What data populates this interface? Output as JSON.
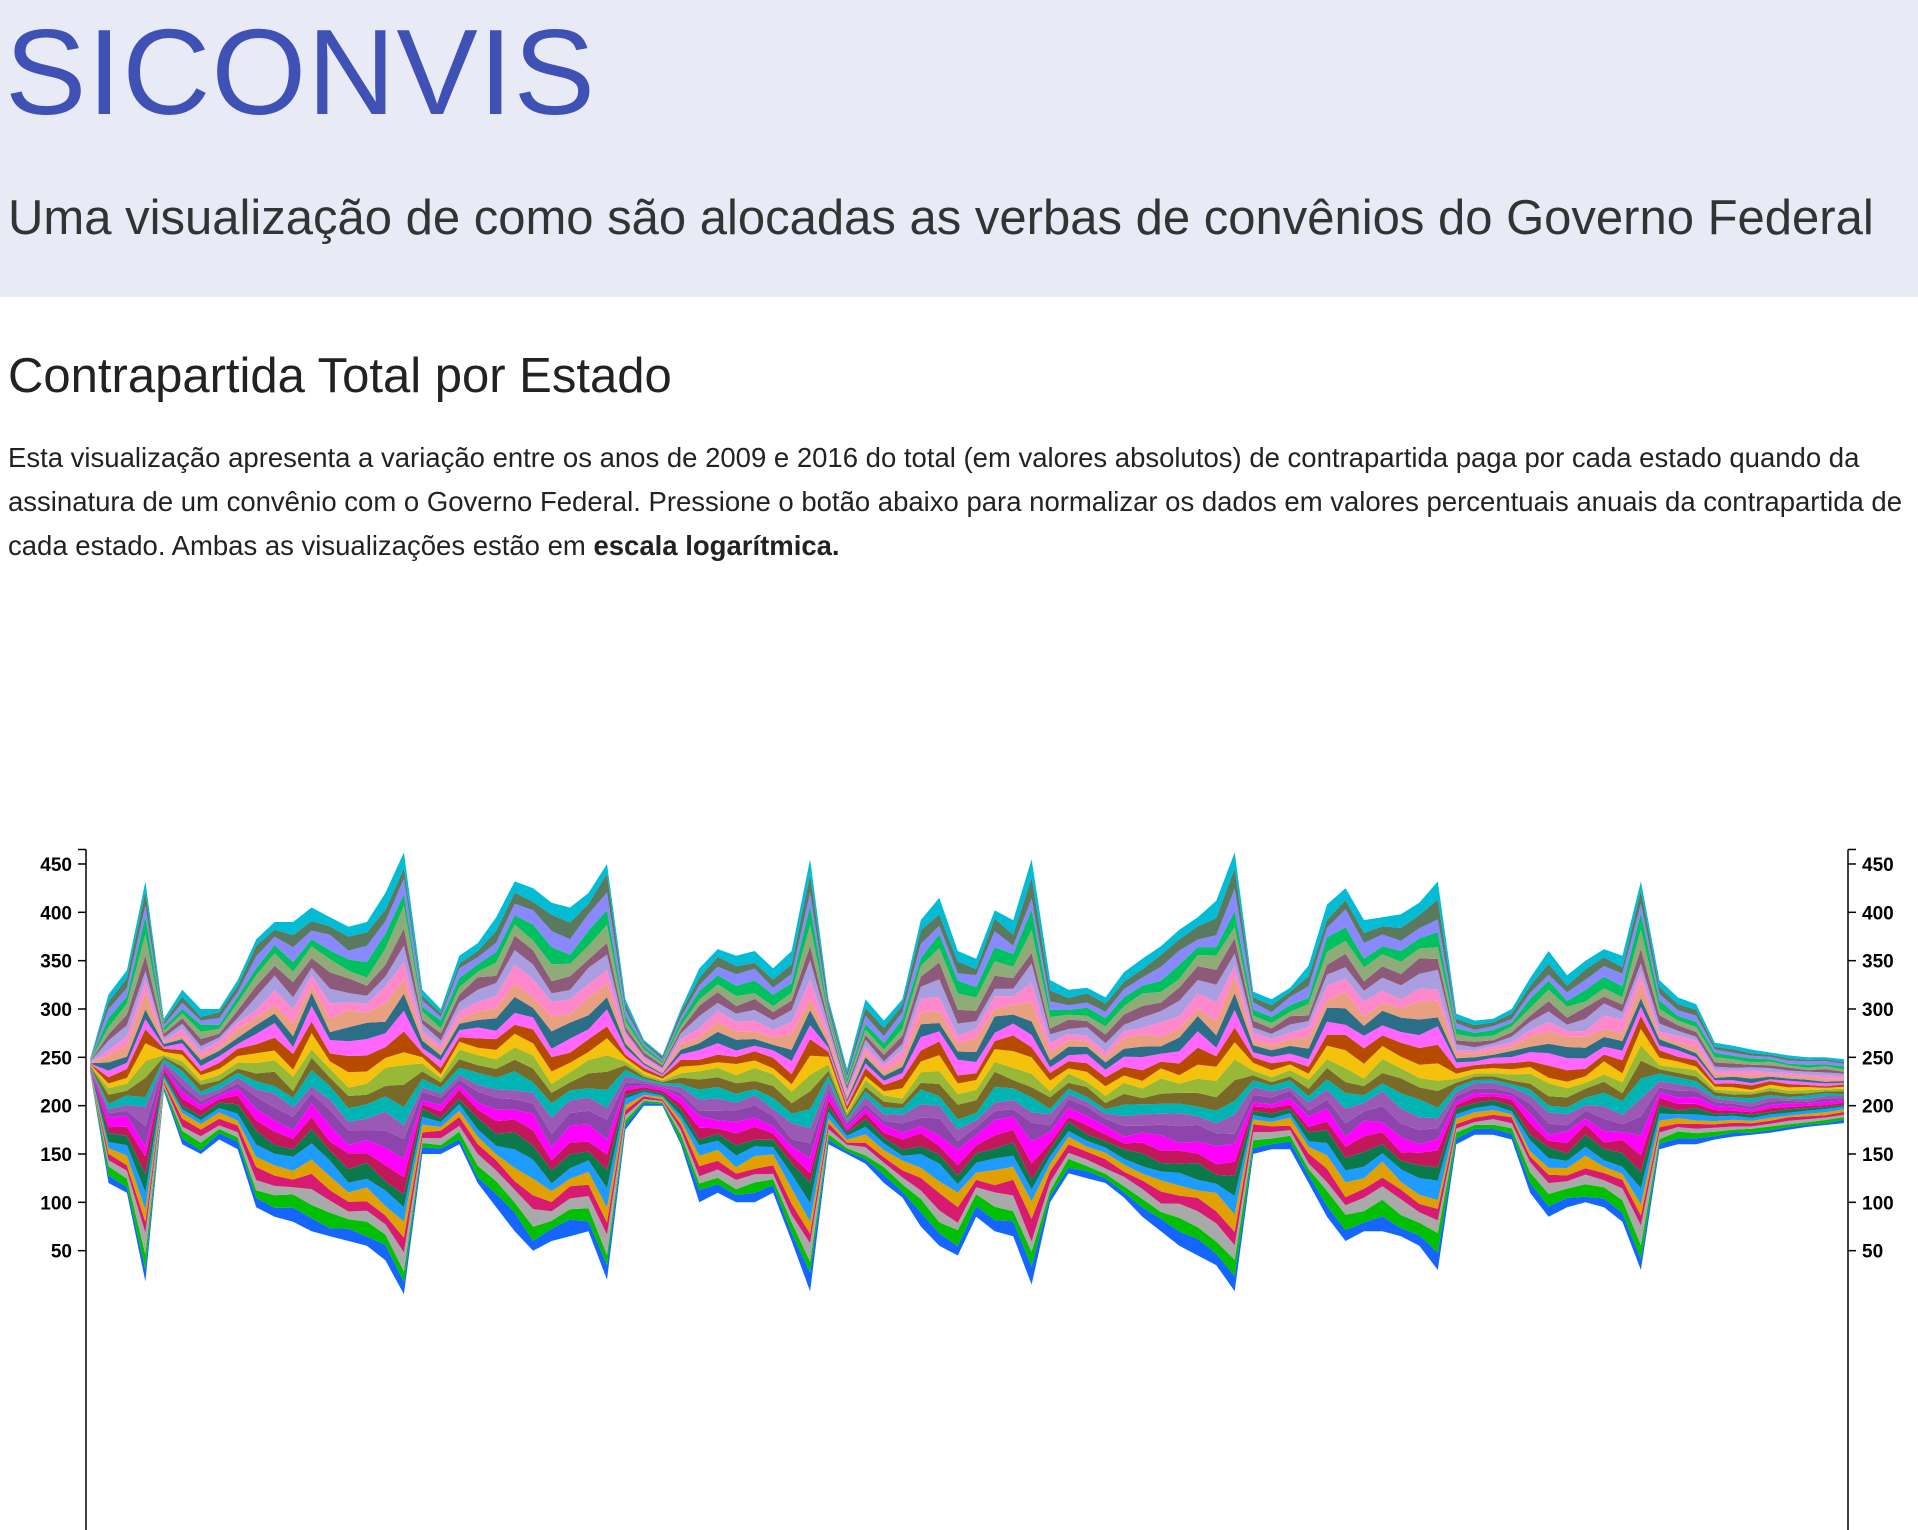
{
  "header": {
    "title": "SICONVIS",
    "subtitle": "Uma visualização de como são alocadas as verbas de convênios do Governo Federal"
  },
  "section": {
    "title": "Contrapartida Total por Estado",
    "description_text": "Esta visualização apresenta a variação entre os anos de 2009 e 2016 do total (em valores absolutos) de contrapartida paga por cada estado quando da assinatura de um convênio com o Governo Federal. Pressione o botão abaixo para normalizar os dados em valores percentuais anuais da contrapartida de cada estado. Ambas as visualizações estão em ",
    "description_bold": "escala logarítmica."
  },
  "chart_data": {
    "type": "area",
    "subtype": "streamgraph",
    "y_axis_left": {
      "ticks": [
        50,
        100,
        150,
        200,
        250,
        300,
        350,
        400,
        450
      ]
    },
    "y_axis_right": {
      "ticks": [
        50,
        100,
        150,
        200,
        250,
        300,
        350,
        400,
        450
      ]
    },
    "ylim": [
      0,
      465
    ],
    "x_points": 96,
    "baseline_note": "symmetric streams around center ~235",
    "top_envelope": [
      248,
      315,
      340,
      432,
      290,
      320,
      300,
      300,
      330,
      372,
      390,
      390,
      405,
      395,
      385,
      390,
      420,
      462,
      320,
      300,
      355,
      368,
      395,
      432,
      425,
      410,
      405,
      420,
      450,
      310,
      268,
      252,
      300,
      342,
      362,
      355,
      360,
      342,
      360,
      455,
      310,
      238,
      310,
      288,
      310,
      392,
      415,
      360,
      352,
      402,
      392,
      455,
      330,
      320,
      322,
      312,
      338,
      352,
      365,
      382,
      395,
      412,
      462,
      318,
      310,
      322,
      345,
      408,
      425,
      392,
      395,
      398,
      410,
      432,
      295,
      288,
      290,
      300,
      332,
      360,
      335,
      350,
      362,
      355,
      432,
      330,
      312,
      305,
      265,
      262,
      258,
      255,
      252,
      250,
      250,
      248
    ],
    "bottom_envelope": [
      235,
      120,
      110,
      18,
      215,
      160,
      150,
      165,
      155,
      95,
      85,
      80,
      70,
      65,
      60,
      55,
      40,
      5,
      150,
      150,
      160,
      120,
      95,
      70,
      50,
      60,
      65,
      70,
      20,
      175,
      200,
      200,
      160,
      100,
      110,
      100,
      100,
      110,
      60,
      8,
      160,
      150,
      140,
      120,
      105,
      75,
      55,
      45,
      85,
      70,
      65,
      15,
      100,
      130,
      125,
      120,
      105,
      85,
      70,
      55,
      45,
      35,
      8,
      150,
      155,
      155,
      120,
      85,
      60,
      70,
      70,
      65,
      55,
      30,
      160,
      170,
      170,
      165,
      110,
      85,
      95,
      100,
      95,
      80,
      30,
      155,
      160,
      160,
      165,
      168,
      170,
      172,
      175,
      178,
      180,
      182
    ],
    "layer_count": 27,
    "layer_colors": [
      "#1565ff",
      "#00c000",
      "#a9a9a9",
      "#d81b70",
      "#e0a000",
      "#1e9bff",
      "#0a7a4a",
      "#c2185b",
      "#ff00ff",
      "#8e44ad",
      "#9b59b6",
      "#00b4b4",
      "#7a6a2a",
      "#98b838",
      "#f4c20d",
      "#b84a00",
      "#ff66ff",
      "#2a6e88",
      "#e8a080",
      "#ff88cc",
      "#a89ee0",
      "#8e5a7a",
      "#8fac78",
      "#00c060",
      "#8888ff",
      "#5a7a60",
      "#00bcd4",
      "#ff8800",
      "#9b30ff"
    ]
  }
}
